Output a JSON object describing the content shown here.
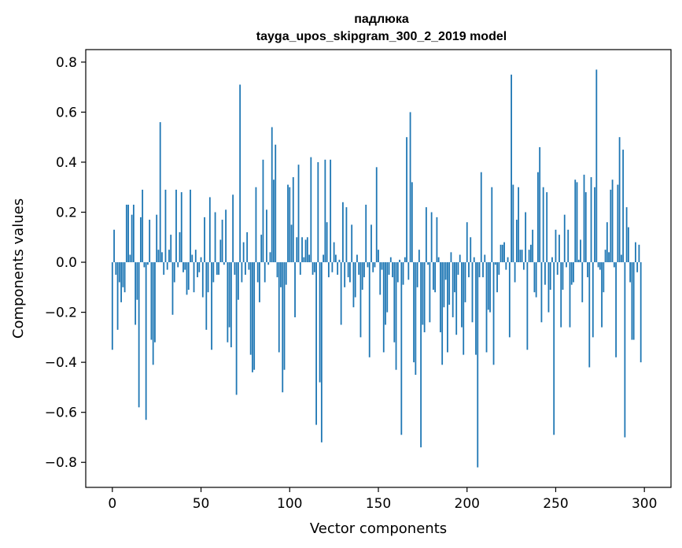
{
  "chart_data": {
    "type": "bar",
    "title": "падлюка",
    "subtitle": "tayga_upos_skipgram_300_2_2019 model",
    "xlabel": "Vector components",
    "ylabel": "Components values",
    "xlim": [
      -15,
      315
    ],
    "ylim": [
      -0.9,
      0.85
    ],
    "xticks": [
      0,
      50,
      100,
      150,
      200,
      250,
      300
    ],
    "yticks": [
      -0.8,
      -0.6,
      -0.4,
      -0.2,
      0.0,
      0.2,
      0.4,
      0.6,
      0.8
    ],
    "ytick_labels": [
      "−0.8",
      "−0.6",
      "−0.4",
      "−0.2",
      "0.0",
      "0.2",
      "0.4",
      "0.6",
      "0.8"
    ],
    "xtick_labels": [
      "0",
      "50",
      "100",
      "150",
      "200",
      "250",
      "300"
    ],
    "grid": false,
    "bar_color": "#1f77b4",
    "values": [
      -0.35,
      0.13,
      -0.05,
      -0.27,
      -0.08,
      -0.16,
      -0.1,
      -0.12,
      0.23,
      0.23,
      0.03,
      0.19,
      0.23,
      -0.25,
      -0.15,
      -0.58,
      0.18,
      0.29,
      -0.02,
      -0.63,
      -0.01,
      0.17,
      -0.31,
      -0.41,
      -0.32,
      0.19,
      0.05,
      0.56,
      0.04,
      -0.05,
      0.29,
      -0.03,
      0.05,
      0.11,
      -0.21,
      -0.08,
      0.29,
      -0.02,
      0.12,
      0.28,
      -0.04,
      -0.03,
      -0.13,
      -0.11,
      0.29,
      0.03,
      -0.12,
      0.05,
      -0.06,
      -0.04,
      0.02,
      -0.14,
      0.18,
      -0.27,
      -0.12,
      0.26,
      -0.35,
      -0.08,
      0.2,
      -0.05,
      -0.05,
      0.09,
      0.17,
      -0.01,
      0.21,
      -0.32,
      -0.26,
      -0.34,
      0.27,
      -0.05,
      -0.53,
      -0.15,
      0.71,
      -0.08,
      0.08,
      -0.05,
      0.12,
      -0.03,
      -0.37,
      -0.44,
      -0.43,
      0.3,
      -0.08,
      -0.16,
      0.11,
      0.41,
      -0.08,
      0.21,
      -0.01,
      0.04,
      0.54,
      0.33,
      0.47,
      -0.06,
      -0.36,
      -0.1,
      -0.52,
      -0.43,
      -0.09,
      0.31,
      0.3,
      0.15,
      0.34,
      -0.22,
      0.1,
      0.39,
      -0.05,
      0.1,
      0.02,
      0.09,
      0.1,
      0.03,
      0.42,
      -0.05,
      -0.04,
      -0.65,
      0.4,
      -0.48,
      -0.72,
      0.03,
      0.41,
      0.16,
      -0.06,
      0.41,
      -0.04,
      0.08,
      0.03,
      -0.05,
      0.01,
      -0.25,
      0.24,
      -0.1,
      0.22,
      -0.06,
      -0.08,
      0.15,
      -0.18,
      -0.14,
      0.03,
      -0.05,
      -0.3,
      -0.11,
      -0.06,
      0.23,
      -0.02,
      -0.38,
      0.15,
      -0.04,
      -0.02,
      0.38,
      0.05,
      -0.13,
      -0.03,
      -0.36,
      -0.25,
      -0.2,
      -0.05,
      0.02,
      -0.06,
      -0.32,
      -0.43,
      -0.08,
      0.01,
      -0.69,
      -0.09,
      0.02,
      0.5,
      -0.07,
      0.6,
      0.32,
      -0.4,
      -0.45,
      -0.1,
      0.05,
      -0.74,
      -0.25,
      -0.28,
      0.22,
      -0.01,
      -0.24,
      0.2,
      -0.11,
      -0.12,
      0.18,
      0.02,
      -0.28,
      -0.41,
      -0.18,
      -0.07,
      -0.36,
      -0.17,
      0.04,
      -0.22,
      -0.12,
      -0.29,
      -0.05,
      0.03,
      -0.26,
      -0.37,
      -0.16,
      0.16,
      -0.06,
      0.1,
      -0.24,
      0.02,
      -0.37,
      -0.82,
      -0.06,
      0.36,
      -0.06,
      0.03,
      -0.36,
      -0.19,
      -0.2,
      0.3,
      -0.41,
      -0.01,
      -0.12,
      -0.05,
      0.07,
      0.07,
      0.08,
      -0.03,
      0.02,
      -0.3,
      0.75,
      0.31,
      -0.08,
      0.17,
      0.3,
      0.05,
      0.05,
      -0.03,
      0.2,
      -0.35,
      0.05,
      0.07,
      0.13,
      -0.12,
      -0.14,
      0.36,
      0.46,
      -0.24,
      0.3,
      -0.09,
      0.28,
      -0.2,
      -0.11,
      0.02,
      -0.69,
      0.13,
      -0.05,
      0.11,
      -0.26,
      -0.11,
      0.19,
      -0.02,
      0.13,
      -0.26,
      -0.09,
      -0.08,
      0.33,
      0.32,
      0.01,
      0.09,
      -0.16,
      0.35,
      0.28,
      -0.06,
      -0.42,
      0.34,
      -0.3,
      0.3,
      0.77,
      -0.02,
      -0.03,
      -0.26,
      -0.12,
      0.05,
      0.16,
      0.04,
      0.29,
      0.33,
      -0.02,
      -0.38,
      0.31,
      0.5,
      0.03,
      0.45,
      -0.7,
      0.22,
      0.14,
      -0.08,
      -0.31,
      -0.31,
      0.08,
      -0.04,
      0.07,
      -0.4
    ]
  }
}
